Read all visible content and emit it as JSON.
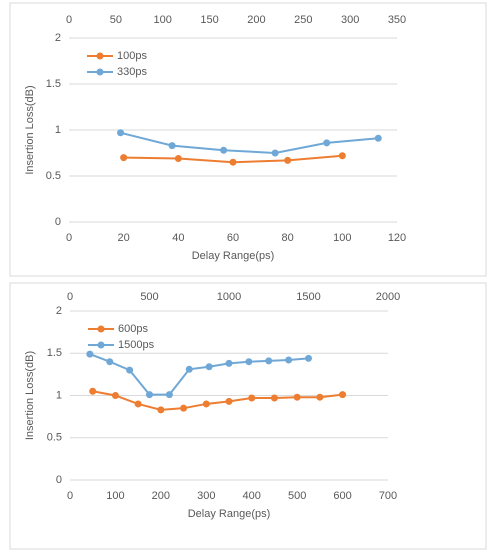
{
  "chart_data": [
    {
      "type": "line",
      "xlabel": "Delay Range(ps)",
      "ylabel": "Insertion Loss(dB)",
      "xlim": [
        0,
        120
      ],
      "xticks": [
        0,
        20,
        40,
        60,
        80,
        100,
        120
      ],
      "x2lim": [
        0,
        350
      ],
      "x2ticks": [
        0,
        50,
        100,
        150,
        200,
        250,
        300,
        350
      ],
      "ylim": [
        0,
        2
      ],
      "yticks": [
        0,
        0.5,
        1,
        1.5,
        2
      ],
      "grid": true,
      "legend": "upper left",
      "series": [
        {
          "name": "100ps",
          "color": "#ed7d31",
          "x": [
            20,
            40,
            60,
            80,
            100
          ],
          "values": [
            0.7,
            0.69,
            0.65,
            0.67,
            0.72
          ]
        },
        {
          "name": "330ps",
          "color": "#6fa8d6",
          "axis": "x2",
          "x": [
            55,
            110,
            165,
            220,
            275,
            330
          ],
          "values": [
            0.97,
            0.83,
            0.78,
            0.75,
            0.86,
            0.91
          ]
        }
      ]
    },
    {
      "type": "line",
      "xlabel": "Delay Range(ps)",
      "ylabel": "Insertion Loss(dB)",
      "xlim": [
        0,
        700
      ],
      "xticks": [
        0,
        100,
        200,
        300,
        400,
        500,
        600,
        700
      ],
      "x2lim": [
        0,
        2000
      ],
      "x2ticks": [
        0,
        500,
        1000,
        1500,
        2000
      ],
      "ylim": [
        0,
        2
      ],
      "yticks": [
        0,
        0.5,
        1,
        1.5,
        2
      ],
      "grid": true,
      "legend": "upper left",
      "series": [
        {
          "name": "600ps",
          "color": "#ed7d31",
          "x": [
            50,
            100,
            150,
            200,
            250,
            300,
            350,
            400,
            450,
            500,
            550,
            600
          ],
          "values": [
            1.05,
            1.0,
            0.9,
            0.83,
            0.85,
            0.9,
            0.93,
            0.97,
            0.97,
            0.98,
            0.98,
            1.01
          ]
        },
        {
          "name": "1500ps",
          "color": "#6fa8d6",
          "axis": "x2",
          "x": [
            125,
            250,
            375,
            500,
            625,
            750,
            875,
            1000,
            1125,
            1250,
            1375,
            1500
          ],
          "values": [
            1.49,
            1.4,
            1.3,
            1.01,
            1.01,
            1.31,
            1.34,
            1.38,
            1.4,
            1.41,
            1.42,
            1.44
          ]
        }
      ]
    }
  ]
}
